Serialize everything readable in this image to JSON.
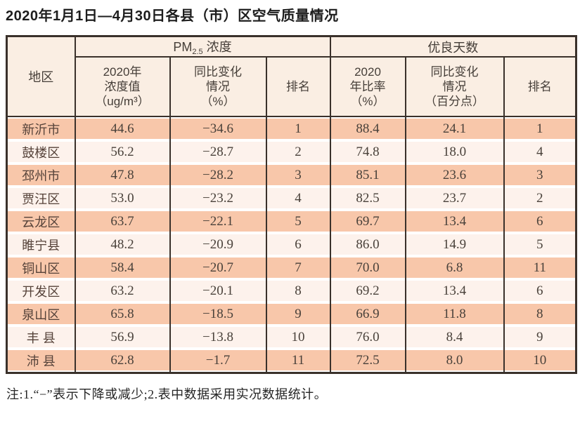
{
  "title": "2020年1月1日—4月30日各县（市）区空气质量情况",
  "note": "注:1.“−”表示下降或减少;2.表中数据采用实况数据统计。",
  "colors": {
    "row_odd": "#f8c7aa",
    "row_even": "#fdf2ec",
    "header_bg": "#faeee3",
    "border": "#3a312b",
    "text": "#49413a"
  },
  "table": {
    "region_header": "地区",
    "groups": {
      "pm": {
        "label_main": "PM",
        "label_sub": "2.5",
        "label_rest": " 浓度"
      },
      "good_days": {
        "label": "优良天数"
      }
    },
    "subheaders": {
      "pm_value": [
        "2020年",
        "浓度值",
        "（ug/m³）"
      ],
      "pm_change": [
        "同比变化",
        "情况",
        "（%）"
      ],
      "pm_rank": "排名",
      "good_rate": [
        "2020",
        "年比率",
        "（%）"
      ],
      "good_change": [
        "同比变化",
        "情况",
        "（百分点）"
      ],
      "good_rank": "排名"
    },
    "rows": [
      {
        "region": "新沂市",
        "pm_value": "44.6",
        "pm_change": "−34.6",
        "pm_rank": "1",
        "good_rate": "88.4",
        "good_change": "24.1",
        "good_rank": "1"
      },
      {
        "region": "鼓楼区",
        "pm_value": "56.2",
        "pm_change": "−28.7",
        "pm_rank": "2",
        "good_rate": "74.8",
        "good_change": "18.0",
        "good_rank": "4"
      },
      {
        "region": "邳州市",
        "pm_value": "47.8",
        "pm_change": "−28.2",
        "pm_rank": "3",
        "good_rate": "85.1",
        "good_change": "23.6",
        "good_rank": "3"
      },
      {
        "region": "贾汪区",
        "pm_value": "53.0",
        "pm_change": "−23.2",
        "pm_rank": "4",
        "good_rate": "82.5",
        "good_change": "23.7",
        "good_rank": "2"
      },
      {
        "region": "云龙区",
        "pm_value": "63.7",
        "pm_change": "−22.1",
        "pm_rank": "5",
        "good_rate": "69.7",
        "good_change": "13.4",
        "good_rank": "6"
      },
      {
        "region": "睢宁县",
        "pm_value": "48.2",
        "pm_change": "−20.9",
        "pm_rank": "6",
        "good_rate": "86.0",
        "good_change": "14.9",
        "good_rank": "5"
      },
      {
        "region": "铜山区",
        "pm_value": "58.4",
        "pm_change": "−20.7",
        "pm_rank": "7",
        "good_rate": "70.0",
        "good_change": "6.8",
        "good_rank": "11"
      },
      {
        "region": "开发区",
        "pm_value": "63.2",
        "pm_change": "−20.1",
        "pm_rank": "8",
        "good_rate": "69.2",
        "good_change": "13.4",
        "good_rank": "6"
      },
      {
        "region": "泉山区",
        "pm_value": "65.8",
        "pm_change": "−18.5",
        "pm_rank": "9",
        "good_rate": "66.9",
        "good_change": "11.8",
        "good_rank": "8"
      },
      {
        "region": "丰 县",
        "pm_value": "56.9",
        "pm_change": "−13.8",
        "pm_rank": "10",
        "good_rate": "76.0",
        "good_change": "8.4",
        "good_rank": "9"
      },
      {
        "region": "沛 县",
        "pm_value": "62.8",
        "pm_change": "−1.7",
        "pm_rank": "11",
        "good_rate": "72.5",
        "good_change": "8.0",
        "good_rank": "10"
      }
    ]
  }
}
